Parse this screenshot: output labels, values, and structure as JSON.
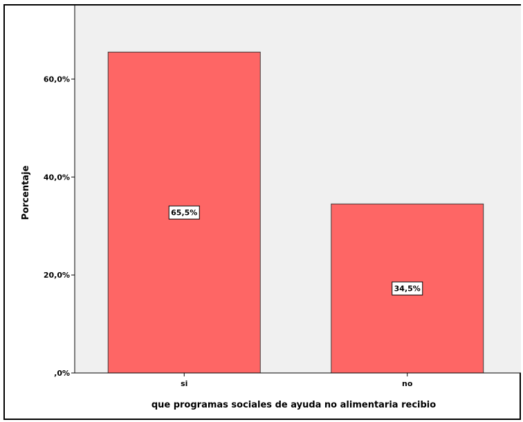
{
  "chart_data": {
    "type": "bar",
    "categories": [
      "si",
      "no"
    ],
    "values": [
      65.5,
      34.5
    ],
    "data_labels": [
      "65,5%",
      "34,5%"
    ],
    "xlabel": "que programas sociales de ayuda no alimentaria recibio",
    "ylabel": "Porcentaje",
    "ylim": [
      0,
      75
    ],
    "yticks": [
      0,
      20,
      40,
      60
    ],
    "ytick_labels": [
      ",0%",
      "20,0%",
      "40,0%",
      "60,0%"
    ],
    "grid": false,
    "colors": {
      "bar": "#fe6665",
      "bar_edge": "#3c3c3c",
      "plot_bg": "#f0f0f0"
    }
  }
}
